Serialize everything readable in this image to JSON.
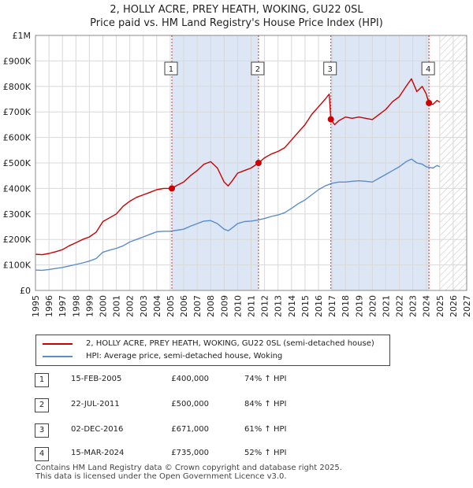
{
  "title_line1": "2, HOLLY ACRE, PREY HEATH, WOKING, GU22 0SL",
  "title_line2": "Price paid vs. HM Land Registry's House Price Index (HPI)",
  "legend": {
    "property_label": "2, HOLLY ACRE, PREY HEATH, WOKING, GU22 0SL (semi-detached house)",
    "hpi_label": "HPI: Average price, semi-detached house, Woking"
  },
  "colors": {
    "property": "#cc0000",
    "hpi": "#5b8dc9",
    "shade": "#dde6f5",
    "grid": "#d8d8d8"
  },
  "sales": [
    {
      "num": "1",
      "date": "15-FEB-2005",
      "price": "£400,000",
      "hpi": "74% ↑ HPI"
    },
    {
      "num": "2",
      "date": "22-JUL-2011",
      "price": "£500,000",
      "hpi": "84% ↑ HPI"
    },
    {
      "num": "3",
      "date": "02-DEC-2016",
      "price": "£671,000",
      "hpi": "61% ↑ HPI"
    },
    {
      "num": "4",
      "date": "15-MAR-2024",
      "price": "£735,000",
      "hpi": "52% ↑ HPI"
    }
  ],
  "footer": {
    "line1": "Contains HM Land Registry data © Crown copyright and database right 2025.",
    "line2": "This data is licensed under the Open Government Licence v3.0."
  },
  "chart_data": {
    "type": "line",
    "title": "2, HOLLY ACRE, PREY HEATH, WOKING, GU22 0SL — Price paid vs. HM Land Registry's House Price Index (HPI)",
    "xlabel": "",
    "ylabel": "",
    "xlim": [
      1995,
      2027
    ],
    "ylim": [
      0,
      1000000
    ],
    "grid": true,
    "legend_position": "below",
    "x_ticks": [
      1995,
      1996,
      1997,
      1998,
      1999,
      2000,
      2001,
      2002,
      2003,
      2004,
      2005,
      2006,
      2007,
      2008,
      2009,
      2010,
      2011,
      2012,
      2013,
      2014,
      2015,
      2016,
      2017,
      2018,
      2019,
      2020,
      2021,
      2022,
      2023,
      2024,
      2025,
      2026,
      2027
    ],
    "y_ticks": [
      {
        "value": 0,
        "label": "£0"
      },
      {
        "value": 100000,
        "label": "£100K"
      },
      {
        "value": 200000,
        "label": "£200K"
      },
      {
        "value": 300000,
        "label": "£300K"
      },
      {
        "value": 400000,
        "label": "£400K"
      },
      {
        "value": 500000,
        "label": "£500K"
      },
      {
        "value": 600000,
        "label": "£600K"
      },
      {
        "value": 700000,
        "label": "£700K"
      },
      {
        "value": 800000,
        "label": "£800K"
      },
      {
        "value": 900000,
        "label": "£900K"
      },
      {
        "value": 1000000,
        "label": "£1M"
      }
    ],
    "shaded_ranges": [
      [
        2005.12,
        2011.55
      ],
      [
        2016.92,
        2024.2
      ]
    ],
    "hatched_from": 2025.0,
    "series": [
      {
        "name": "2, HOLLY ACRE, PREY HEATH, WOKING, GU22 0SL (semi-detached house)",
        "x": [
          1995.0,
          1995.5,
          1996.0,
          1996.5,
          1997.0,
          1997.5,
          1998.0,
          1998.5,
          1999.0,
          1999.5,
          2000.0,
          2000.5,
          2001.0,
          2001.5,
          2002.0,
          2002.5,
          2003.0,
          2003.5,
          2004.0,
          2004.5,
          2005.12,
          2005.5,
          2006.0,
          2006.5,
          2007.0,
          2007.5,
          2008.0,
          2008.5,
          2009.0,
          2009.3,
          2009.6,
          2010.0,
          2010.5,
          2011.0,
          2011.55,
          2012.0,
          2012.5,
          2013.0,
          2013.5,
          2014.0,
          2014.5,
          2015.0,
          2015.5,
          2016.0,
          2016.5,
          2016.8,
          2016.92,
          2017.2,
          2017.5,
          2018.0,
          2018.5,
          2019.0,
          2019.5,
          2020.0,
          2020.5,
          2021.0,
          2021.5,
          2022.0,
          2022.5,
          2022.9,
          2023.3,
          2023.7,
          2024.0,
          2024.2,
          2024.5,
          2024.8,
          2025.0
        ],
        "values": [
          142000,
          140000,
          145000,
          152000,
          160000,
          175000,
          187000,
          200000,
          210000,
          228000,
          270000,
          285000,
          300000,
          330000,
          350000,
          365000,
          375000,
          385000,
          395000,
          400000,
          400000,
          412000,
          425000,
          450000,
          470000,
          495000,
          505000,
          480000,
          425000,
          410000,
          430000,
          460000,
          470000,
          480000,
          500000,
          520000,
          535000,
          545000,
          560000,
          590000,
          620000,
          650000,
          690000,
          720000,
          750000,
          770000,
          671000,
          650000,
          665000,
          680000,
          675000,
          680000,
          675000,
          670000,
          690000,
          710000,
          740000,
          760000,
          800000,
          830000,
          780000,
          800000,
          770000,
          735000,
          730000,
          745000,
          738000
        ]
      },
      {
        "name": "HPI: Average price, semi-detached house, Woking",
        "x": [
          1995.0,
          1995.5,
          1996.0,
          1996.5,
          1997.0,
          1997.5,
          1998.0,
          1998.5,
          1999.0,
          1999.5,
          2000.0,
          2000.5,
          2001.0,
          2001.5,
          2002.0,
          2002.5,
          2003.0,
          2003.5,
          2004.0,
          2004.5,
          2005.0,
          2005.5,
          2006.0,
          2006.5,
          2007.0,
          2007.5,
          2008.0,
          2008.5,
          2009.0,
          2009.3,
          2009.6,
          2010.0,
          2010.5,
          2011.0,
          2011.5,
          2012.0,
          2012.5,
          2013.0,
          2013.5,
          2014.0,
          2014.5,
          2015.0,
          2015.5,
          2016.0,
          2016.5,
          2017.0,
          2017.5,
          2018.0,
          2018.5,
          2019.0,
          2019.5,
          2020.0,
          2020.5,
          2021.0,
          2021.5,
          2022.0,
          2022.5,
          2022.9,
          2023.3,
          2023.7,
          2024.0,
          2024.5,
          2024.8,
          2025.0
        ],
        "values": [
          80000,
          79000,
          82000,
          86000,
          90000,
          96000,
          102000,
          108000,
          115000,
          125000,
          150000,
          158000,
          165000,
          175000,
          190000,
          200000,
          210000,
          220000,
          230000,
          232000,
          232000,
          236000,
          240000,
          252000,
          262000,
          272000,
          274000,
          262000,
          240000,
          234000,
          245000,
          262000,
          270000,
          272000,
          276000,
          282000,
          290000,
          296000,
          305000,
          322000,
          340000,
          355000,
          375000,
          395000,
          410000,
          420000,
          425000,
          425000,
          428000,
          430000,
          428000,
          425000,
          440000,
          455000,
          470000,
          485000,
          505000,
          515000,
          500000,
          495000,
          485000,
          480000,
          490000,
          485000
        ]
      }
    ],
    "annotations": [
      {
        "label": "1",
        "x": 2005.12,
        "y": 400000
      },
      {
        "label": "2",
        "x": 2011.55,
        "y": 500000
      },
      {
        "label": "3",
        "x": 2016.92,
        "y": 671000
      },
      {
        "label": "4",
        "x": 2024.2,
        "y": 735000
      }
    ]
  }
}
